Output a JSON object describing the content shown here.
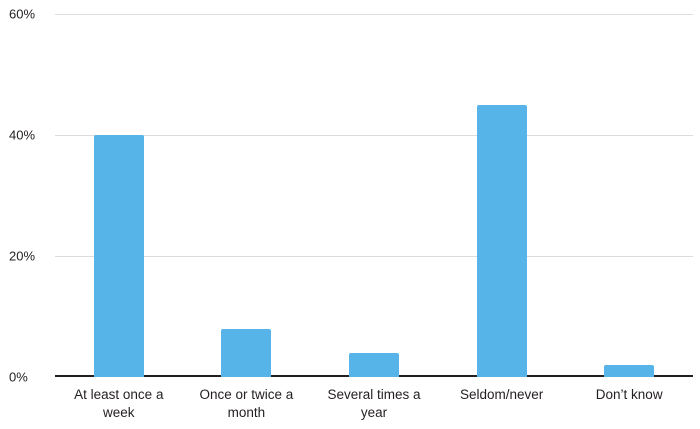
{
  "chart_data": {
    "type": "bar",
    "categories": [
      "At least once a week",
      "Once or twice a month",
      "Several times a year",
      "Seldom/never",
      "Don’t know"
    ],
    "values": [
      40,
      8,
      4,
      45,
      2
    ],
    "title": "",
    "xlabel": "",
    "ylabel": "",
    "ylim": [
      0,
      60
    ],
    "yticks": [
      0,
      20,
      40,
      60
    ],
    "ytick_labels": [
      "0%",
      "20%",
      "40%",
      "60%"
    ],
    "bar_color": "#56b4e9",
    "axis_color": "#231f20",
    "gridline_color": "#dcdcdc",
    "grid": "horizontal",
    "legend": "none",
    "background": "#ffffff"
  }
}
